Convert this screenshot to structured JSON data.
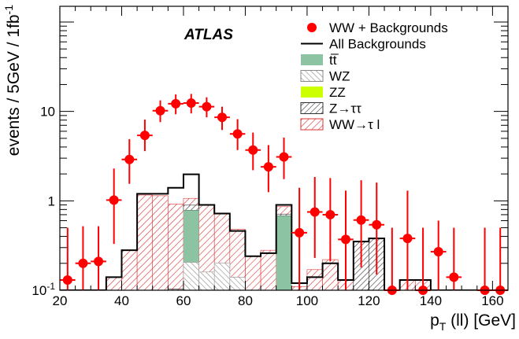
{
  "chart_data": {
    "type": "histogram",
    "title": "",
    "label": "ATLAS",
    "xlabel_main": "p",
    "xlabel_sub": "T",
    "xlabel_rest": " (ll) [GeV]",
    "ylabel": "events / 5GeV / 1fb",
    "ylabel_sup": "-1",
    "xlim": [
      20,
      165
    ],
    "ylim": [
      0.1,
      150
    ],
    "yscale": "log",
    "x_ticks": [
      20,
      40,
      60,
      80,
      100,
      120,
      140,
      160
    ],
    "x_tick_labels": [
      "20",
      "40",
      "60",
      "80",
      "100",
      "120",
      "140",
      "160"
    ],
    "y_ticks": [
      {
        "value": 0.1,
        "base": "10",
        "exp": "-1"
      },
      {
        "value": 1,
        "base": "1",
        "exp": ""
      },
      {
        "value": 10,
        "base": "10",
        "exp": ""
      }
    ],
    "bin_edges": [
      20,
      25,
      30,
      35,
      40,
      45,
      50,
      55,
      60,
      65,
      70,
      75,
      80,
      85,
      90,
      95,
      100,
      105,
      110,
      115,
      120,
      125,
      130,
      135,
      140,
      145,
      150,
      155,
      160,
      165
    ],
    "data_series": {
      "name": "WW + Backgrounds",
      "color": "#ff0000",
      "points": [
        {
          "x": 22.5,
          "y": 0.13,
          "lo": 0.1,
          "hi": 0.5
        },
        {
          "x": 27.5,
          "y": 0.2,
          "lo": 0.1,
          "hi": 0.52
        },
        {
          "x": 32.5,
          "y": 0.21,
          "lo": 0.1,
          "hi": 0.52
        },
        {
          "x": 37.5,
          "y": 1.02,
          "lo": 0.33,
          "hi": 2.3
        },
        {
          "x": 42.5,
          "y": 2.9,
          "lo": 1.55,
          "hi": 4.9
        },
        {
          "x": 47.5,
          "y": 5.4,
          "lo": 3.6,
          "hi": 8.1
        },
        {
          "x": 52.5,
          "y": 10.2,
          "lo": 7.6,
          "hi": 13.3
        },
        {
          "x": 57.5,
          "y": 12.2,
          "lo": 9.3,
          "hi": 15.5
        },
        {
          "x": 62.5,
          "y": 12.4,
          "lo": 9.5,
          "hi": 15.7
        },
        {
          "x": 67.5,
          "y": 11.3,
          "lo": 8.6,
          "hi": 14.4
        },
        {
          "x": 72.5,
          "y": 8.6,
          "lo": 6.2,
          "hi": 11.3
        },
        {
          "x": 77.5,
          "y": 5.6,
          "lo": 3.7,
          "hi": 8.2
        },
        {
          "x": 82.5,
          "y": 3.7,
          "lo": 2.2,
          "hi": 5.8
        },
        {
          "x": 87.5,
          "y": 2.4,
          "lo": 1.25,
          "hi": 4.2
        },
        {
          "x": 92.5,
          "y": 3.1,
          "lo": 1.75,
          "hi": 5.1
        },
        {
          "x": 97.5,
          "y": 0.44,
          "lo": 0.1,
          "hi": 1.4
        },
        {
          "x": 102.5,
          "y": 0.75,
          "lo": 0.23,
          "hi": 1.85
        },
        {
          "x": 107.5,
          "y": 0.7,
          "lo": 0.21,
          "hi": 1.8
        },
        {
          "x": 112.5,
          "y": 0.37,
          "lo": 0.1,
          "hi": 1.3
        },
        {
          "x": 117.5,
          "y": 0.61,
          "lo": 0.18,
          "hi": 1.7
        },
        {
          "x": 122.5,
          "y": 0.54,
          "lo": 0.15,
          "hi": 1.6
        },
        {
          "x": 127.5,
          "y": 0.1,
          "lo": 0.1,
          "hi": 0.5
        },
        {
          "x": 132.5,
          "y": 0.38,
          "lo": 0.1,
          "hi": 1.3
        },
        {
          "x": 137.5,
          "y": 0.1,
          "lo": 0.1,
          "hi": 0.5
        },
        {
          "x": 142.5,
          "y": 0.27,
          "lo": 0.1,
          "hi": 0.6
        },
        {
          "x": 147.5,
          "y": 0.14,
          "lo": 0.1,
          "hi": 0.5
        },
        {
          "x": 157.5,
          "y": 0.1,
          "lo": 0.1,
          "hi": 0.5
        },
        {
          "x": 162.5,
          "y": 0.1,
          "lo": 0.1,
          "hi": 0.5
        }
      ]
    },
    "stack": [
      {
        "name": "ZZ",
        "color": "#ccff00",
        "fill": "solid",
        "values": [
          0,
          0,
          0,
          0,
          0,
          0,
          0,
          0.013,
          0.035,
          0,
          0.012,
          0,
          0,
          0,
          0,
          0,
          0,
          0,
          0,
          0,
          0,
          0,
          0,
          0,
          0,
          0,
          0,
          0,
          0
        ]
      },
      {
        "name": "WZ",
        "color": "#777777",
        "fill": "hatch-back",
        "values": [
          0,
          0,
          0,
          0,
          0,
          0,
          0.04,
          0.05,
          0.17,
          0.16,
          0.19,
          0.14,
          0.07,
          0.08,
          0.09,
          0.05,
          0.02,
          0.02,
          0.02,
          0,
          0,
          0,
          0,
          0,
          0,
          0,
          0,
          0,
          0
        ]
      },
      {
        "name": "tt̅",
        "color": "#8cc3a3",
        "fill": "solid",
        "values": [
          0,
          0,
          0,
          0,
          0,
          0,
          0,
          0,
          0.58,
          0,
          0,
          0,
          0,
          0,
          0.59,
          0,
          0,
          0,
          0,
          0,
          0,
          0,
          0,
          0,
          0,
          0,
          0,
          0,
          0
        ]
      },
      {
        "name": "Z→ττ",
        "color": "#333333",
        "fill": "hatch-fwd",
        "values": [
          0,
          0,
          0,
          0,
          0,
          0,
          0,
          0.04,
          0.11,
          0,
          0,
          0,
          0,
          0,
          0.03,
          0,
          0,
          0.02,
          0,
          0.35,
          0.38,
          0,
          0,
          0,
          0,
          0,
          0,
          0,
          0
        ]
      },
      {
        "name": "WW→τ l",
        "color": "#dd3333",
        "fill": "hatch-fwd",
        "values": [
          0.1,
          0.1,
          0.1,
          0.14,
          0.28,
          1.16,
          1.1,
          0.82,
          0.17,
          0.75,
          0.53,
          0.34,
          0.17,
          0.2,
          0.15,
          0.06,
          0.15,
          0.18,
          0.11,
          0,
          0,
          0.08,
          0.13,
          0.13,
          0.05,
          0.04,
          0,
          0,
          0
        ]
      }
    ],
    "all_backgrounds": {
      "name": "All Backgrounds",
      "color": "#000000",
      "values": [
        0.1,
        0.1,
        0.1,
        0.14,
        0.28,
        1.2,
        1.2,
        1.4,
        1.98,
        0.9,
        0.72,
        0.46,
        0.24,
        0.26,
        0.9,
        0.12,
        0.14,
        0.2,
        0.13,
        0.35,
        0.38,
        0.08,
        0.13,
        0.13,
        0.05,
        0.04,
        0,
        0,
        0
      ]
    },
    "legend": [
      {
        "label": "WW + Backgrounds",
        "style": "marker",
        "color": "#ff0000"
      },
      {
        "label": "All Backgrounds",
        "style": "line",
        "color": "#000000"
      },
      {
        "label": "tt̅",
        "style": "solid",
        "color": "#8cc3a3"
      },
      {
        "label": "WZ",
        "style": "hatch-back",
        "color": "#777777"
      },
      {
        "label": "ZZ",
        "style": "solid",
        "color": "#ccff00"
      },
      {
        "label": "Z→ττ",
        "style": "hatch-fwd",
        "color": "#333333"
      },
      {
        "label": "WW→τ l",
        "style": "hatch-fwd",
        "color": "#dd3333"
      }
    ],
    "legend_position": "top-right"
  }
}
